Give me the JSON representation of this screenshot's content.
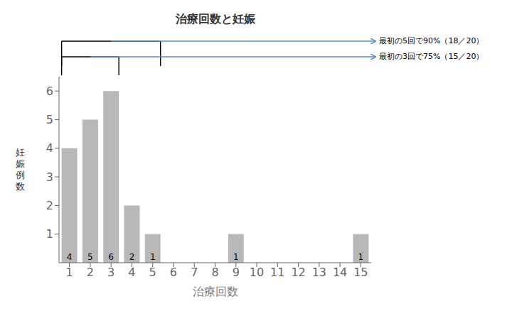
{
  "chart_data": {
    "type": "bar",
    "title": "治療回数と妊娠",
    "xlabel": "治療回数",
    "ylabel": "妊\n娠\n例\n数",
    "categories": [
      1,
      2,
      3,
      4,
      5,
      6,
      7,
      8,
      9,
      10,
      11,
      12,
      13,
      14,
      15
    ],
    "values": [
      4,
      5,
      6,
      2,
      1,
      0,
      0,
      0,
      1,
      0,
      0,
      0,
      0,
      0,
      1
    ],
    "color": "#b8b8b8",
    "ylim": [
      0,
      6.5
    ],
    "yticks": [
      1,
      2,
      3,
      4,
      5,
      6
    ],
    "grid": false,
    "data_labels": true,
    "annotations": [
      {
        "text": "最初の5回で90%（18／20）",
        "span": [
          1,
          5
        ],
        "color": "#5b8bc5"
      },
      {
        "text": "最初の3回で75%（15／20）",
        "span": [
          1,
          3
        ],
        "color": "#5b8bc5"
      }
    ]
  }
}
